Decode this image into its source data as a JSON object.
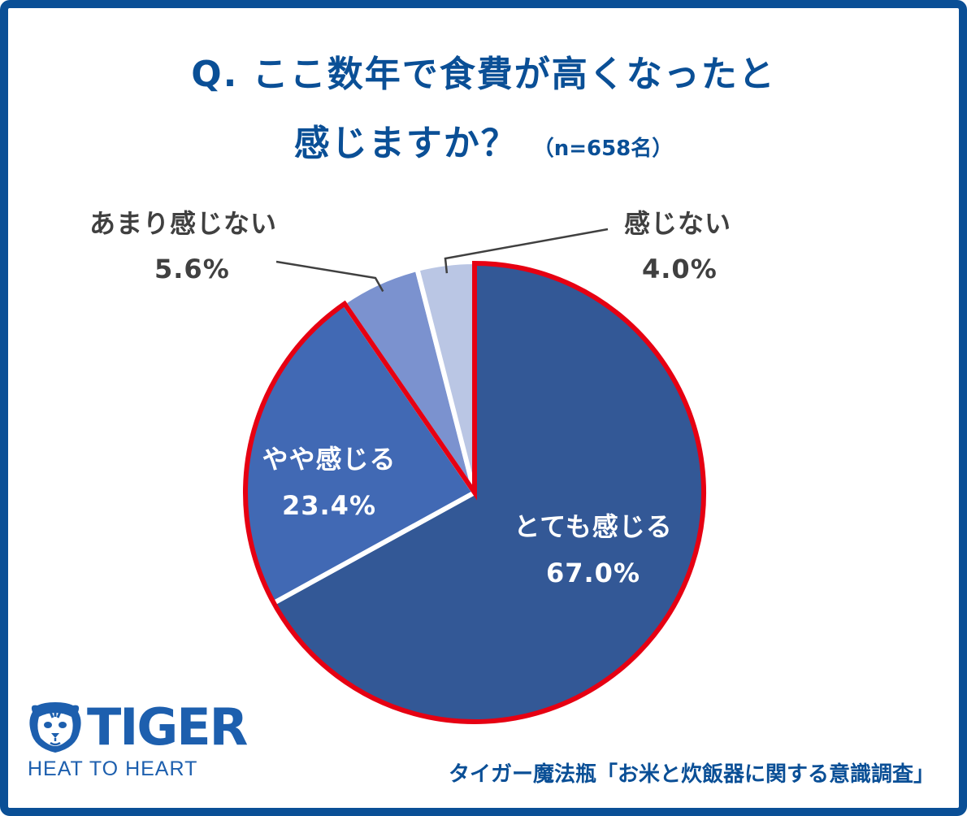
{
  "title": {
    "line1": "Q. ここ数年で食費が高くなったと",
    "line2": "感じますか？",
    "sample": "（n=658名）"
  },
  "chart_data": {
    "type": "pie",
    "slices": [
      {
        "name": "とても感じる",
        "value": 67.0,
        "label": "67.0%",
        "color": "#335896"
      },
      {
        "name": "やや感じる",
        "value": 23.4,
        "label": "23.4%",
        "color": "#4169b4"
      },
      {
        "name": "あまり感じない",
        "value": 5.6,
        "label": "5.6%",
        "color": "#7b92cf"
      },
      {
        "name": "感じない",
        "value": 4.0,
        "label": "4.0%",
        "color": "#bac6e4"
      }
    ],
    "highlight": {
      "slices": [
        "とても感じる",
        "やや感じる"
      ],
      "color": "#e60012"
    }
  },
  "logo": {
    "word": "TIGER",
    "tagline": "HEAT TO HEART",
    "color": "#1d5fae"
  },
  "source": "タイガー魔法瓶「お米と炊飯器に関する意識調査」",
  "colors": {
    "frame": "#0a4f96",
    "title": "#0a4f96",
    "label_dark": "#404040"
  }
}
